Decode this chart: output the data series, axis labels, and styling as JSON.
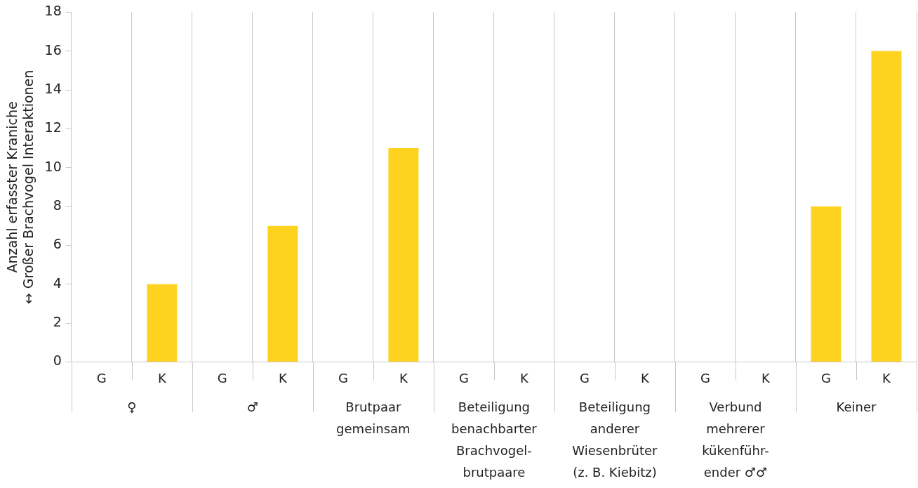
{
  "chart_data": {
    "type": "bar",
    "ylabel": "Anzahl erfasster Kraniche\n↔ Großer Brachvogel Interaktionen",
    "categories": [
      "G",
      "K",
      "G",
      "K",
      "G",
      "K",
      "G",
      "K",
      "G",
      "K",
      "G",
      "K",
      "G",
      "K"
    ],
    "values": [
      0,
      4,
      0,
      7,
      0,
      11,
      0,
      0,
      0,
      0,
      0,
      0,
      8,
      16
    ],
    "color": "#fdd320",
    "ylim": [
      0,
      18
    ],
    "yticks": [
      0,
      2,
      4,
      6,
      8,
      10,
      12,
      14,
      16,
      18
    ],
    "grid": "x",
    "legend": false,
    "annotations": [
      "♀",
      "♂",
      "Brutpaar\ngemeinsam",
      "Beteiligung\nbenachbarter\nBrachvogel-\nbrutpaare",
      "Beteiligung\nanderer\nWiesenbrüter\n(z. B. Kiebitz)",
      "Verbund\nmehrerer\nkükenführ-\nender ♂♂",
      "Keiner"
    ]
  }
}
